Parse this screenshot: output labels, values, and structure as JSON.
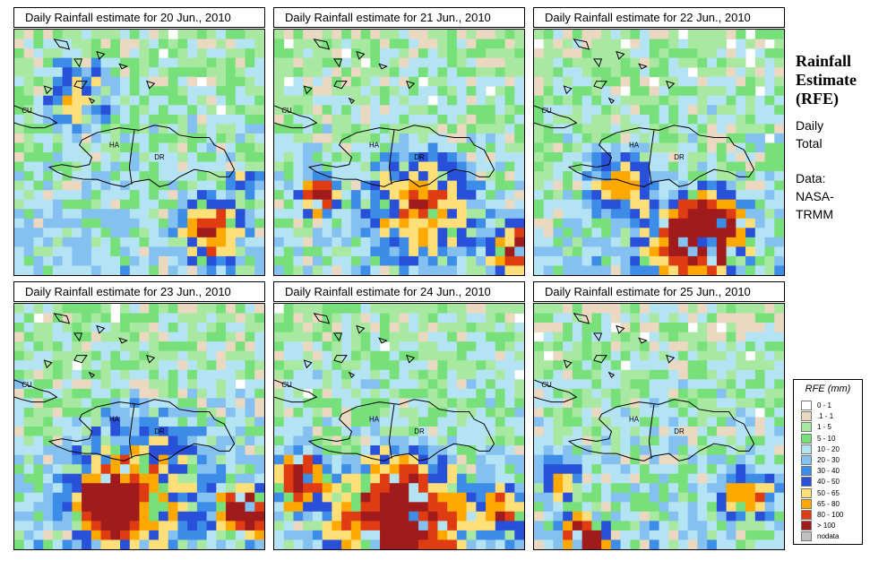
{
  "panels": [
    {
      "title": "Daily Rainfall estimate for  20 Jun., 2010",
      "seed": 11,
      "storms": [
        [
          0.25,
          0.27,
          0.2,
          1.2
        ],
        [
          0.78,
          0.82,
          0.18,
          1.9
        ],
        [
          0.92,
          0.62,
          0.1,
          1.1
        ]
      ]
    },
    {
      "title": "Daily Rainfall estimate for  21 Jun., 2010",
      "seed": 23,
      "storms": [
        [
          0.18,
          0.68,
          0.1,
          2.6
        ],
        [
          0.6,
          0.72,
          0.3,
          1.5
        ],
        [
          0.97,
          0.9,
          0.15,
          2.1
        ]
      ]
    },
    {
      "title": "Daily Rainfall estimate for  22 Jun., 2010",
      "seed": 37,
      "storms": [
        [
          0.7,
          0.82,
          0.22,
          3.0
        ],
        [
          0.35,
          0.62,
          0.18,
          1.3
        ],
        [
          0.55,
          0.9,
          0.25,
          1.2
        ]
      ]
    },
    {
      "title": "Daily Rainfall estimate for  23 Jun., 2010",
      "seed": 41,
      "storms": [
        [
          0.38,
          0.82,
          0.17,
          3.1
        ],
        [
          0.93,
          0.85,
          0.15,
          3.1
        ],
        [
          0.5,
          0.75,
          0.4,
          1.3
        ]
      ]
    },
    {
      "title": "Daily Rainfall estimate for  24 Jun., 2010",
      "seed": 53,
      "storms": [
        [
          0.5,
          0.88,
          0.35,
          2.8
        ],
        [
          0.1,
          0.72,
          0.15,
          2.8
        ],
        [
          0.9,
          0.85,
          0.15,
          1.6
        ]
      ]
    },
    {
      "title": "Daily Rainfall estimate for  25 Jun., 2010",
      "seed": 67,
      "storms": [
        [
          0.2,
          0.95,
          0.12,
          3.1
        ],
        [
          0.85,
          0.78,
          0.15,
          1.6
        ],
        [
          0.1,
          0.72,
          0.12,
          1.2
        ]
      ]
    }
  ],
  "map_labels": {
    "cuba": "CU",
    "haiti": "HA",
    "dominican_republic": "DR"
  },
  "side_info": {
    "title_lines": [
      "Rainfall",
      "Estimate",
      "(RFE)"
    ],
    "period_lines": [
      "Daily",
      "Total"
    ],
    "source_lines": [
      "Data:",
      "NASA-",
      "TRMM"
    ]
  },
  "legend": {
    "title": "RFE (mm)",
    "items": [
      {
        "label": "0 - 1",
        "color": "#ffffff"
      },
      {
        "label": ".1 - 1",
        "color": "#ead8c0"
      },
      {
        "label": "1 - 5",
        "color": "#a8e8a0"
      },
      {
        "label": "5 - 10",
        "color": "#78e07a"
      },
      {
        "label": "10 - 20",
        "color": "#b4e4f4"
      },
      {
        "label": "20 - 30",
        "color": "#84c0f0"
      },
      {
        "label": "30 - 40",
        "color": "#3c8ce8"
      },
      {
        "label": "40 - 50",
        "color": "#2850d8"
      },
      {
        "label": "50 - 65",
        "color": "#ffe078"
      },
      {
        "label": "65 - 80",
        "color": "#ffa800"
      },
      {
        "label": "80 - 100",
        "color": "#e03c14"
      },
      {
        "label": "> 100",
        "color": "#a01c1c"
      },
      {
        "label": "nodata",
        "color": "#c0c0c0"
      }
    ]
  }
}
